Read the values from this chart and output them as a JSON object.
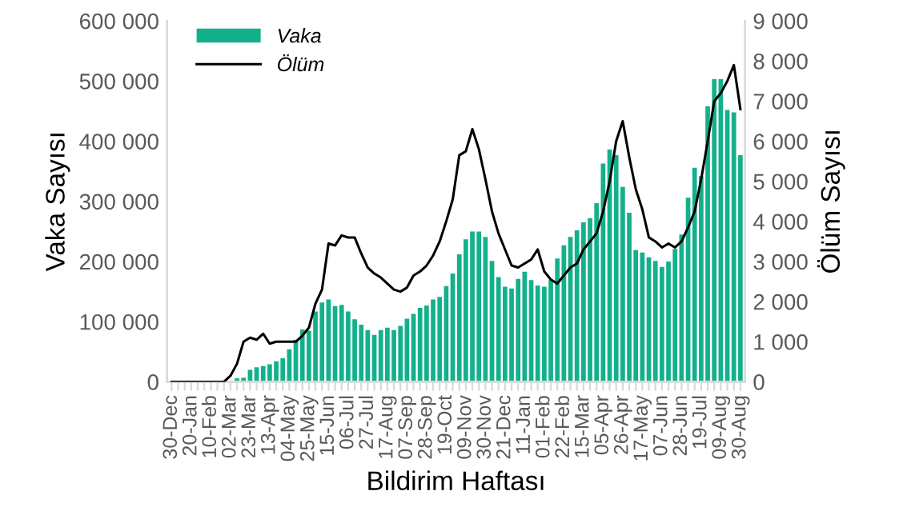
{
  "chart_data": {
    "type": "bar",
    "xlabel": "Bildirim Haftası",
    "ylabel": "Vaka Sayısı",
    "y2label": "Ölüm Sayısı",
    "categories": [
      "30-Dec",
      null,
      null,
      "20-Jan",
      null,
      null,
      "10-Feb",
      null,
      null,
      "02-Mar",
      null,
      null,
      "23-Mar",
      null,
      null,
      "13-Apr",
      null,
      null,
      "04-May",
      null,
      null,
      "25-May",
      null,
      null,
      "15-Jun",
      null,
      null,
      "06-Jul",
      null,
      null,
      "27-Jul",
      null,
      null,
      "17-Aug",
      null,
      null,
      "07-Sep",
      null,
      null,
      "28-Sep",
      null,
      null,
      "19-Oct",
      null,
      null,
      "09-Nov",
      null,
      null,
      "30-Nov",
      null,
      null,
      "21-Dec",
      null,
      null,
      "11-Jan",
      null,
      null,
      "01-Feb",
      null,
      null,
      "22-Feb",
      null,
      null,
      "15-Mar",
      null,
      null,
      "05-Apr",
      null,
      null,
      "26-Apr",
      null,
      null,
      "17-May",
      null,
      null,
      "07-Jun",
      null,
      null,
      "28-Jun",
      null,
      null,
      "19-Jul",
      null,
      null,
      "09-Aug",
      null,
      null,
      "30-Aug"
    ],
    "series": [
      {
        "name": "Vaka",
        "color": "#13b08c",
        "values": [
          0,
          0,
          0,
          0,
          0,
          0,
          0,
          0,
          0,
          0,
          6000,
          7000,
          20000,
          24000,
          26000,
          29000,
          34000,
          39000,
          54000,
          70000,
          87000,
          85000,
          117000,
          132000,
          137000,
          126000,
          128000,
          117000,
          104000,
          95000,
          86000,
          78000,
          86000,
          90000,
          86000,
          93000,
          105000,
          113000,
          123000,
          127000,
          137000,
          141000,
          159000,
          180000,
          212000,
          237000,
          250000,
          250000,
          241000,
          201000,
          174000,
          158000,
          155000,
          171000,
          183000,
          169000,
          160000,
          158000,
          169000,
          205000,
          227000,
          241000,
          252000,
          265000,
          272000,
          297000,
          363000,
          386000,
          377000,
          324000,
          281000,
          219000,
          215000,
          207000,
          201000,
          191000,
          200000,
          221000,
          245000,
          306000,
          356000,
          342000,
          458000,
          503000,
          503000,
          452000,
          448000,
          377000
        ]
      },
      {
        "name": "Ölüm",
        "type": "line",
        "axis": "y2",
        "color": "#000000",
        "values": [
          0,
          0,
          0,
          0,
          0,
          0,
          0,
          0,
          0,
          150,
          450,
          1000,
          1100,
          1050,
          1200,
          950,
          1000,
          1000,
          1000,
          1000,
          1150,
          1350,
          1950,
          2300,
          3450,
          3400,
          3650,
          3600,
          3600,
          3200,
          2850,
          2700,
          2600,
          2450,
          2300,
          2250,
          2350,
          2650,
          2750,
          2900,
          3150,
          3500,
          4000,
          4550,
          5650,
          5750,
          6300,
          5800,
          5050,
          4250,
          3700,
          3300,
          2900,
          2850,
          2950,
          3050,
          3300,
          2750,
          2550,
          2450,
          2650,
          2850,
          2950,
          3300,
          3500,
          3700,
          4250,
          5000,
          6000,
          6500,
          5600,
          4800,
          4300,
          3600,
          3500,
          3350,
          3450,
          3350,
          3500,
          3850,
          4250,
          5050,
          6000,
          7000,
          7200,
          7500,
          7900,
          6800
        ]
      }
    ],
    "ylim": [
      0,
      600000
    ],
    "yticks": [
      {
        "value": 0,
        "label": "0"
      },
      {
        "value": 100000,
        "label": "100 000"
      },
      {
        "value": 200000,
        "label": "200 000"
      },
      {
        "value": 300000,
        "label": "300 000"
      },
      {
        "value": 400000,
        "label": "400 000"
      },
      {
        "value": 500000,
        "label": "500 000"
      },
      {
        "value": 600000,
        "label": "600 000"
      }
    ],
    "y2lim": [
      0,
      9000
    ],
    "y2ticks": [
      {
        "value": 0,
        "label": "0"
      },
      {
        "value": 1000,
        "label": "1 000"
      },
      {
        "value": 2000,
        "label": "2 000"
      },
      {
        "value": 3000,
        "label": "3 000"
      },
      {
        "value": 4000,
        "label": "4 000"
      },
      {
        "value": 5000,
        "label": "5 000"
      },
      {
        "value": 6000,
        "label": "6 000"
      },
      {
        "value": 7000,
        "label": "7 000"
      },
      {
        "value": 8000,
        "label": "8 000"
      },
      {
        "value": 9000,
        "label": "9 000"
      }
    ],
    "legend": "top left",
    "grid": false
  }
}
